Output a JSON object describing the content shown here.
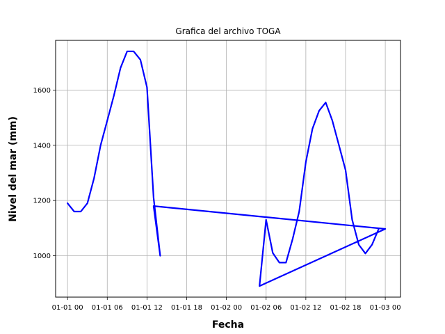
{
  "chart_data": {
    "type": "line",
    "title": "Grafica del archivo TOGA",
    "xlabel": "Fecha",
    "ylabel": "Nivel del mar (mm)",
    "x_unit": "hours",
    "xlim": [
      "01-01 -1.8",
      "01-02 30.3"
    ],
    "ylim": [
      850,
      1780
    ],
    "x_ticks": [
      {
        "label": "01-01 00",
        "hour": 0
      },
      {
        "label": "01-01 06",
        "hour": 6
      },
      {
        "label": "01-01 12",
        "hour": 12
      },
      {
        "label": "01-01 18",
        "hour": 18
      },
      {
        "label": "01-02 00",
        "hour": 24
      },
      {
        "label": "01-02 06",
        "hour": 30
      },
      {
        "label": "01-02 12",
        "hour": 36
      },
      {
        "label": "01-02 18",
        "hour": 42
      },
      {
        "label": "01-03 00",
        "hour": 48
      }
    ],
    "y_ticks": [
      1000,
      1200,
      1400,
      1600
    ],
    "grid": true,
    "color": "#0000ff",
    "series": [
      {
        "name": "",
        "points": [
          [
            0,
            1190
          ],
          [
            1,
            1160
          ],
          [
            2,
            1160
          ],
          [
            3,
            1190
          ],
          [
            4,
            1280
          ],
          [
            5,
            1400
          ],
          [
            6,
            1490
          ],
          [
            7,
            1580
          ],
          [
            8,
            1680
          ],
          [
            9,
            1740
          ],
          [
            10,
            1740
          ],
          [
            11,
            1710
          ],
          [
            12,
            1610
          ],
          [
            13,
            1210
          ],
          [
            14,
            1000
          ],
          [
            13,
            1180
          ],
          [
            48,
            1097
          ],
          [
            29,
            890
          ],
          [
            30,
            1130
          ],
          [
            31,
            1010
          ],
          [
            32,
            975
          ],
          [
            33,
            975
          ],
          [
            34,
            1060
          ],
          [
            35,
            1160
          ],
          [
            36,
            1340
          ],
          [
            37,
            1460
          ],
          [
            38,
            1525
          ],
          [
            39,
            1555
          ],
          [
            40,
            1490
          ],
          [
            41,
            1400
          ],
          [
            42,
            1310
          ],
          [
            43,
            1130
          ],
          [
            44,
            1040
          ],
          [
            45,
            1008
          ],
          [
            46,
            1040
          ],
          [
            47,
            1097
          ]
        ]
      }
    ]
  }
}
